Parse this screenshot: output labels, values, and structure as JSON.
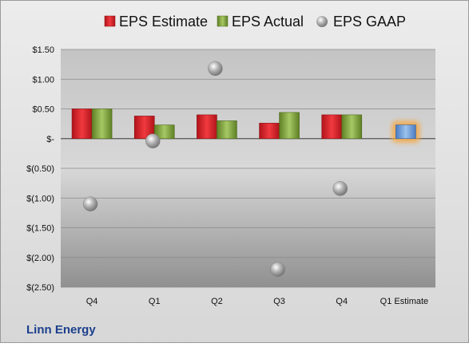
{
  "chart_data": {
    "type": "bar",
    "company": "Linn Energy",
    "categories": [
      "Q4",
      "Q1",
      "Q2",
      "Q3",
      "Q4",
      "Q1 Estimate"
    ],
    "y_tick_labels": [
      "$1.50",
      "$1.00",
      "$0.50",
      "$-",
      "$(0.50)",
      "$(1.00)",
      "$(1.50)",
      "$(2.00)",
      "$(2.50)"
    ],
    "y_ticks": [
      1.5,
      1.0,
      0.5,
      0,
      -0.5,
      -1.0,
      -1.5,
      -2.0,
      -2.5
    ],
    "ylim": [
      -2.5,
      1.5
    ],
    "grid": true,
    "legend_position": "top",
    "series": [
      {
        "name": "EPS Estimate",
        "kind": "bar",
        "color": "#e8262e",
        "values": [
          0.5,
          0.38,
          0.4,
          0.26,
          0.4,
          null
        ]
      },
      {
        "name": "EPS Actual",
        "kind": "bar",
        "color": "#8db04a",
        "values": [
          0.5,
          0.23,
          0.3,
          0.44,
          0.4,
          null
        ]
      },
      {
        "name": "EPS GAAP",
        "kind": "marker",
        "color": "#aaaaaa",
        "values": [
          -1.1,
          -0.04,
          1.18,
          -2.2,
          -0.84,
          null
        ]
      },
      {
        "name": "Q1 Estimate",
        "kind": "bar",
        "color": "#7aa8e0",
        "values": [
          null,
          null,
          null,
          null,
          null,
          0.23
        ]
      }
    ]
  }
}
